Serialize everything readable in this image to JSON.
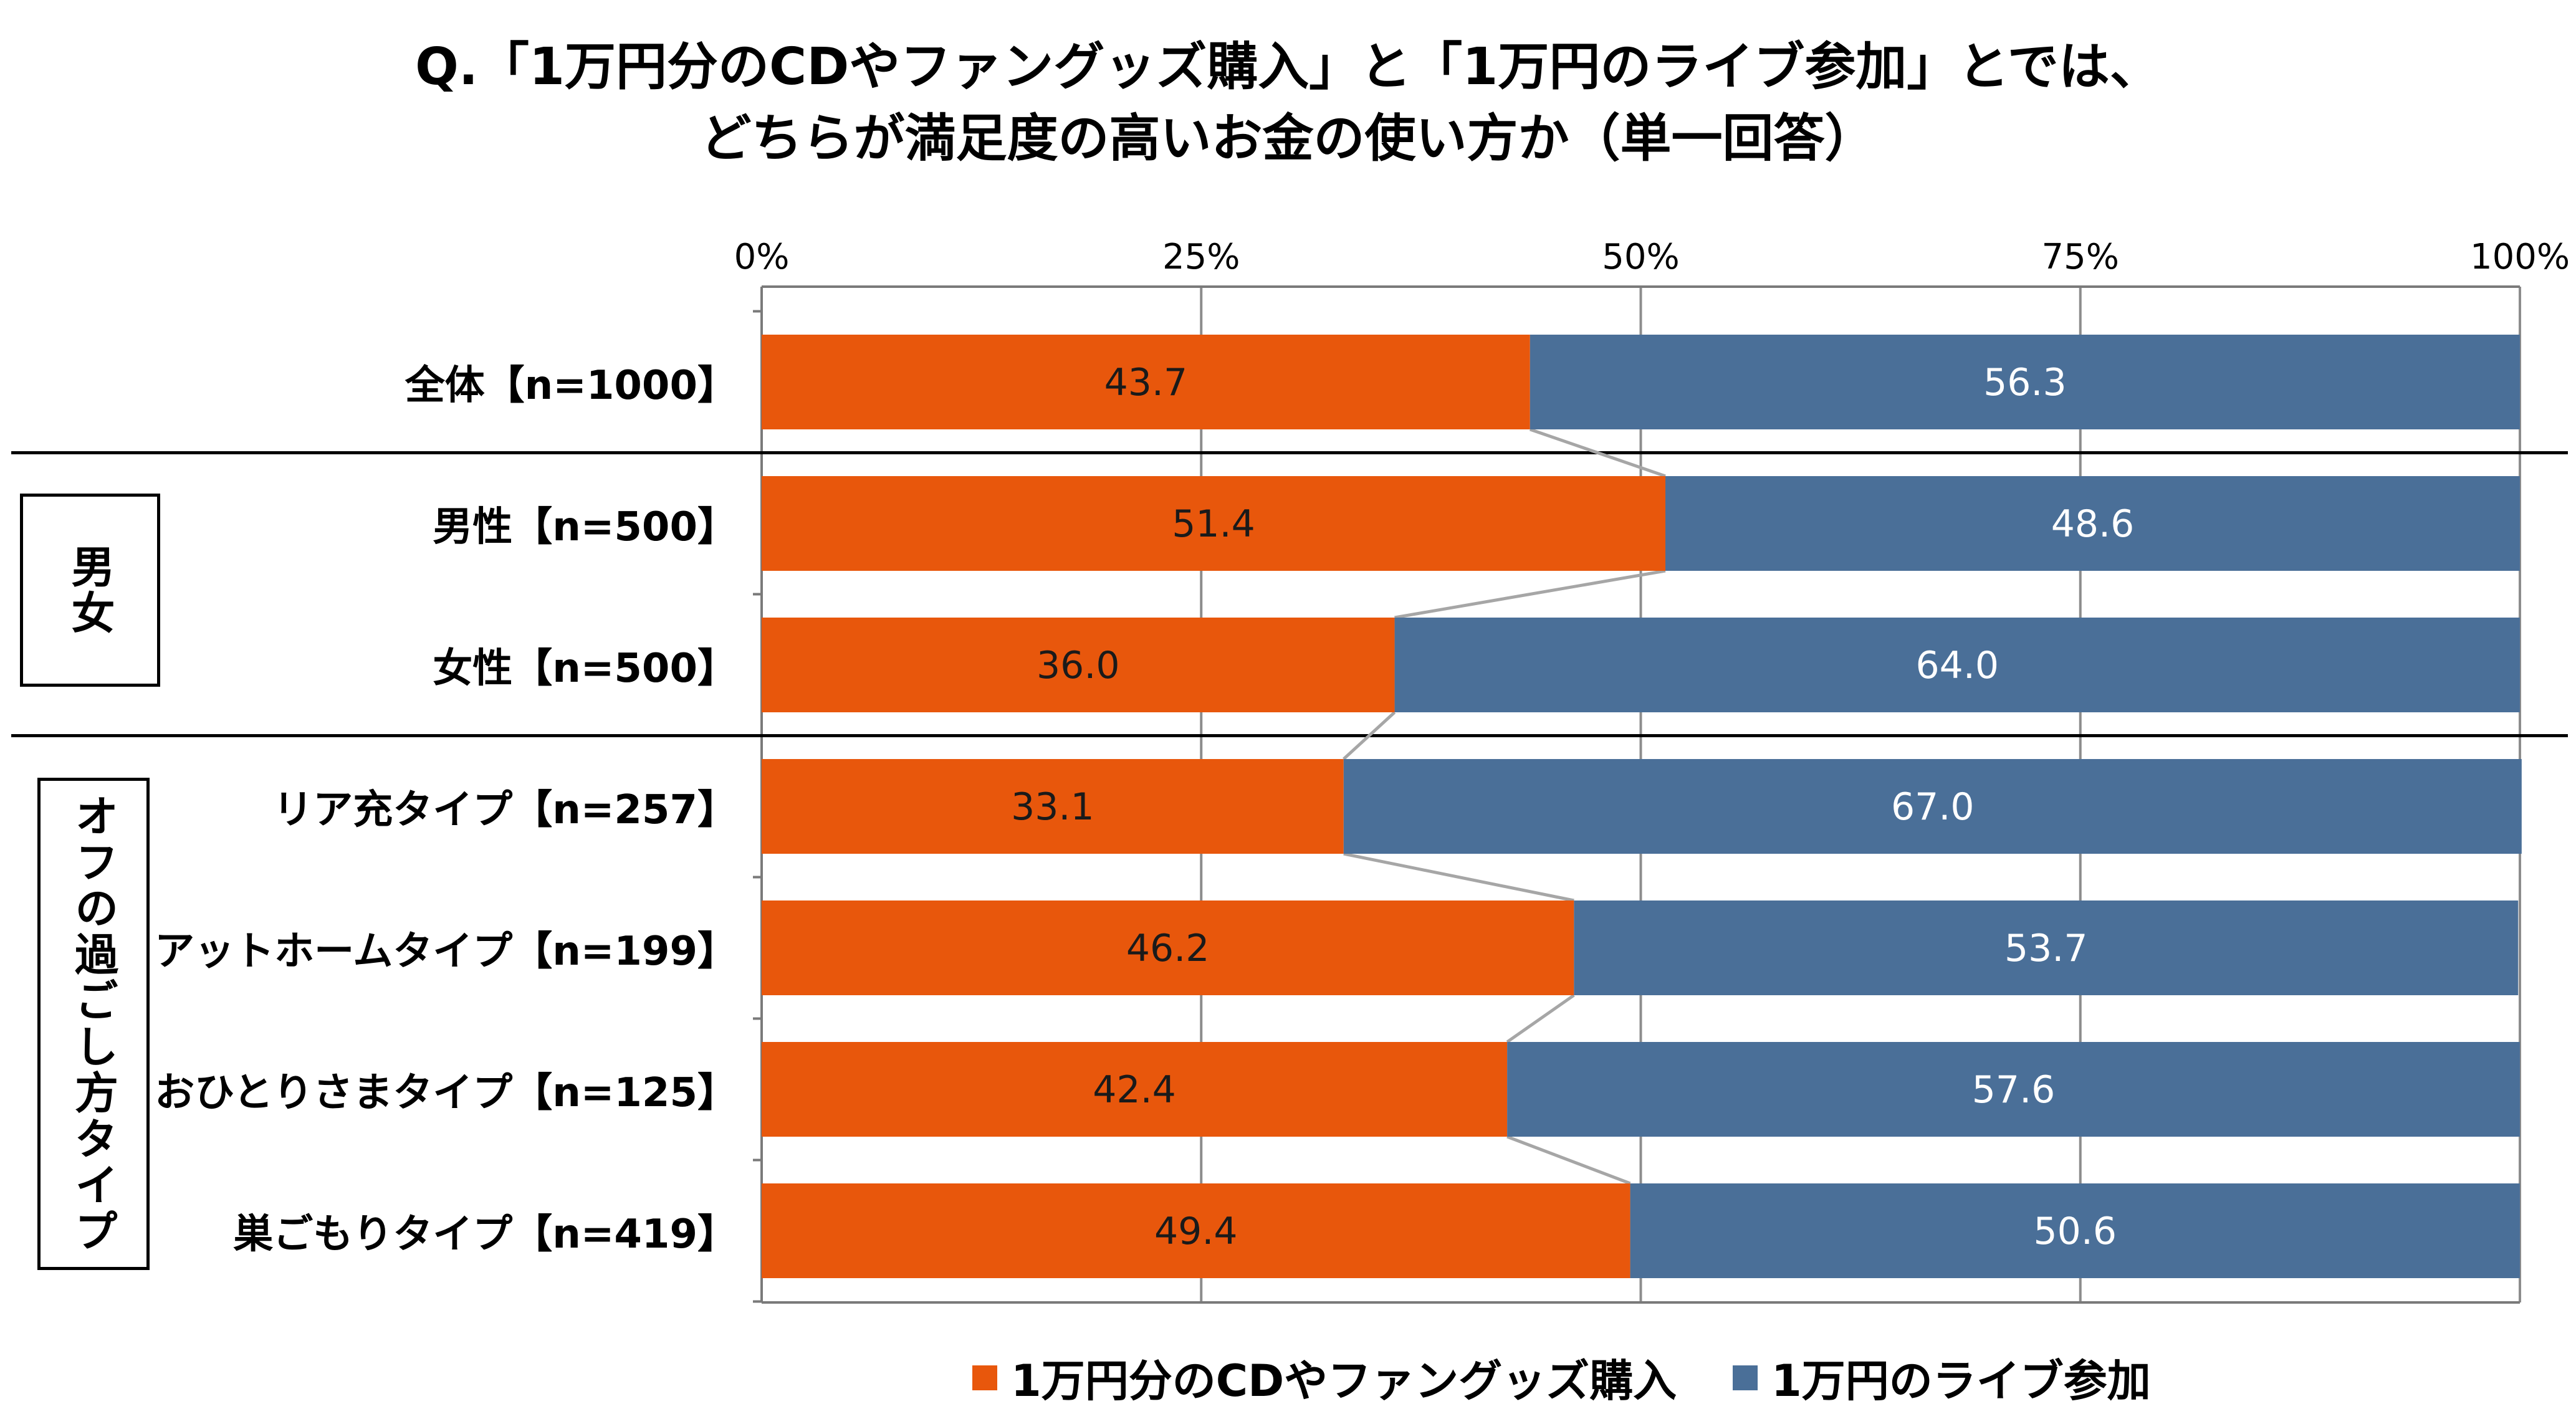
{
  "chart_data": {
    "type": "bar",
    "orientation": "horizontal",
    "stacked": "100%",
    "title": "Q.「1万円分のCDやファングッズ購入」と「1万円のライブ参加」とでは、",
    "subtitle": "どちらが満足度の高いお金の使い方か（単一回答）",
    "xlim": [
      0,
      100
    ],
    "xticks": [
      "0%",
      "25%",
      "50%",
      "75%",
      "100%"
    ],
    "grid": true,
    "legend_position": "bottom",
    "categories": [
      "全体【n=1000】",
      "男性【n=500】",
      "女性【n=500】",
      "リア充タイプ【n=257】",
      "アットホームタイプ【n=199】",
      "おひとりさまタイプ【n=125】",
      "巣ごもりタイプ【n=419】"
    ],
    "value_labels": [
      [
        "43.7",
        "51.4",
        "36.0",
        "33.1",
        "46.2",
        "42.4",
        "49.4"
      ],
      [
        "56.3",
        "48.6",
        "64.0",
        "67.0",
        "53.7",
        "57.6",
        "50.6"
      ]
    ],
    "series": [
      {
        "name": "1万円分のCDやファングッズ購入",
        "color": "#E8570C",
        "values": [
          43.7,
          51.4,
          36.0,
          33.1,
          46.2,
          42.4,
          49.4
        ]
      },
      {
        "name": "1万円のライブ参加",
        "color": "#4A6F98",
        "values": [
          56.3,
          48.6,
          64.0,
          67.0,
          53.7,
          57.6,
          50.6
        ]
      }
    ],
    "groups": [
      {
        "label": "男女"
      },
      {
        "label": "オフの過ごし方タイプ"
      }
    ]
  }
}
